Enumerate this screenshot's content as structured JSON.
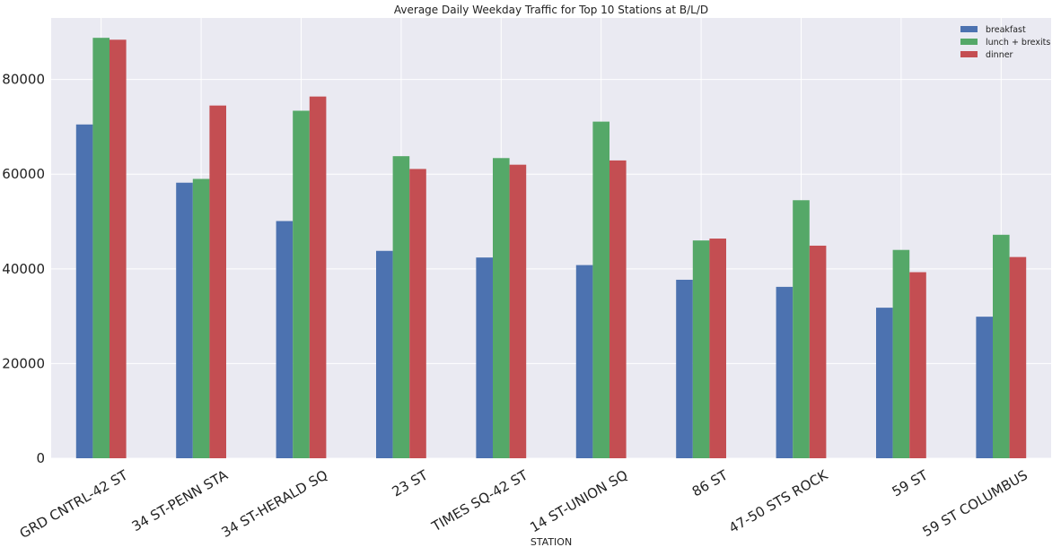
{
  "chart_data": {
    "type": "bar",
    "title": "Average Daily Weekday Traffic for Top 10 Stations at B/L/D",
    "xlabel": "STATION",
    "ylabel": "",
    "ylim": [
      0,
      93000
    ],
    "yticks": [
      0,
      20000,
      40000,
      60000,
      80000
    ],
    "grid": true,
    "legend_position": "top-right",
    "categories": [
      "GRD CNTRL-42 ST",
      "34 ST-PENN STA",
      "34 ST-HERALD SQ",
      "23 ST",
      "TIMES SQ-42 ST",
      "14 ST-UNION SQ",
      "86 ST",
      "47-50 STS ROCK",
      "59 ST",
      "59 ST COLUMBUS"
    ],
    "series": [
      {
        "name": "breakfast",
        "color": "#4C72B0",
        "values": [
          70500,
          58200,
          50100,
          43800,
          42400,
          40800,
          37700,
          36200,
          31800,
          29900
        ]
      },
      {
        "name": "lunch + brexits",
        "color": "#55A868",
        "values": [
          88800,
          59000,
          73400,
          63800,
          63400,
          71100,
          46000,
          54500,
          44000,
          47200
        ]
      },
      {
        "name": "dinner",
        "color": "#C44E52",
        "values": [
          88400,
          74500,
          76400,
          61100,
          62000,
          62900,
          46400,
          44900,
          39300,
          42500
        ]
      }
    ]
  }
}
